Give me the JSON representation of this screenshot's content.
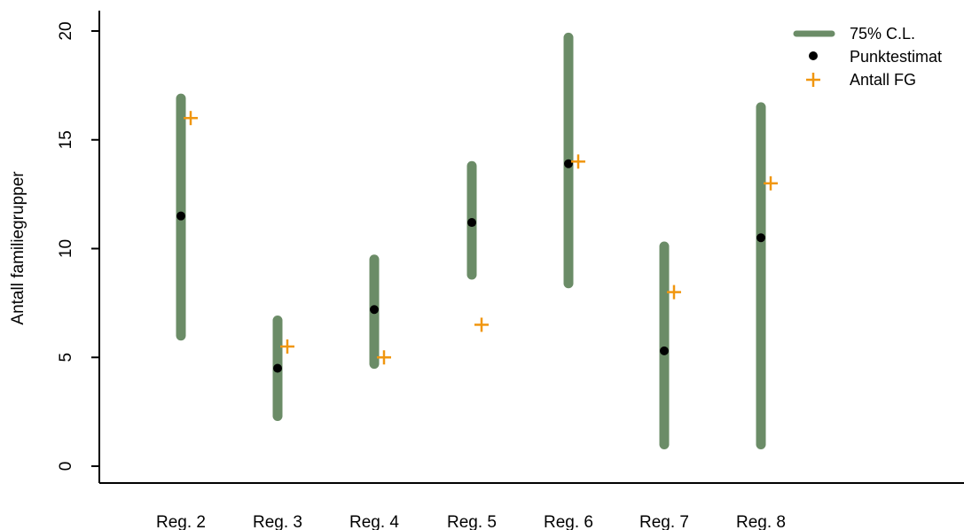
{
  "chart_data": {
    "type": "scatter",
    "title": "",
    "xlabel": "",
    "ylabel": "Antall familiegrupper",
    "categories": [
      "Reg. 2",
      "Reg. 3",
      "Reg. 4",
      "Reg. 5",
      "Reg. 6",
      "Reg. 7",
      "Reg. 8"
    ],
    "ylim": [
      -0.7,
      21
    ],
    "yticks": [
      0,
      5,
      10,
      15,
      20
    ],
    "grid": false,
    "legend_position": "top-right",
    "series": [
      {
        "name": "75% C.L.",
        "kind": "interval",
        "lower": [
          6.0,
          2.3,
          4.7,
          8.8,
          8.4,
          1.0,
          1.0
        ],
        "upper": [
          16.9,
          6.7,
          9.5,
          13.8,
          19.7,
          10.1,
          16.5
        ]
      },
      {
        "name": "Punktestimat",
        "kind": "point",
        "values": [
          11.5,
          4.5,
          7.2,
          11.2,
          13.9,
          5.3,
          10.5
        ]
      },
      {
        "name": "Antall FG",
        "kind": "plus",
        "values": [
          16,
          5.5,
          5,
          6.5,
          14,
          8,
          13
        ]
      }
    ],
    "colors": {
      "interval": "#6b8c67",
      "point": "#000000",
      "plus": "#f0960f",
      "axis": "#000000"
    }
  }
}
